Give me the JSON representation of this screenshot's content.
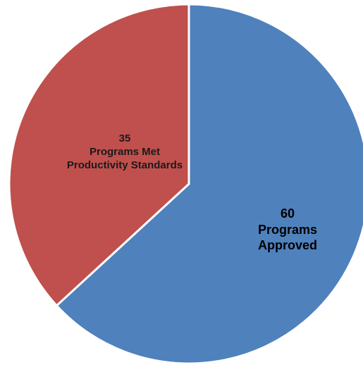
{
  "chart_data": {
    "type": "pie",
    "categories": [
      "Programs Approved",
      "Programs Met Productivity Standards"
    ],
    "values": [
      60,
      35
    ],
    "colors": [
      "#4f81bd",
      "#c0504d"
    ]
  }
}
